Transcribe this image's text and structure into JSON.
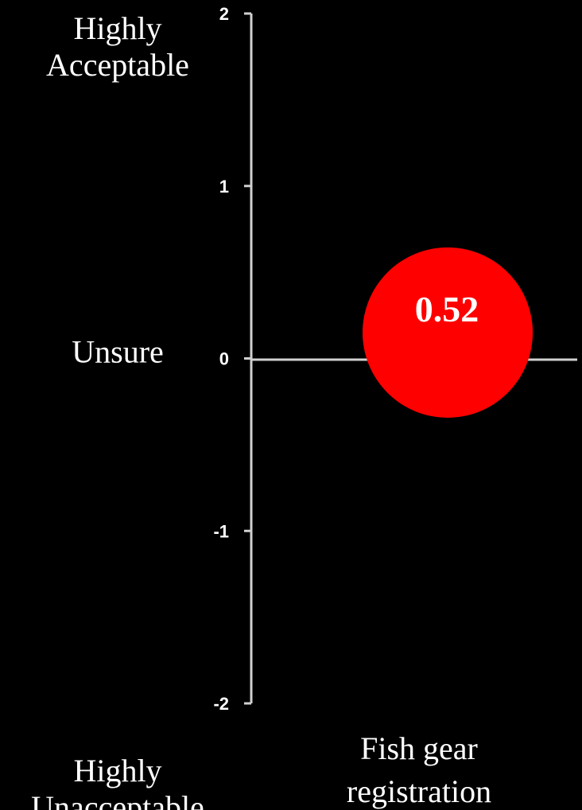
{
  "chart_data": {
    "type": "scatter",
    "ylim": [
      -2,
      2
    ],
    "yticks": [
      2,
      1,
      0,
      -1,
      -2
    ],
    "ytick_labels": [
      "2",
      "1",
      "0",
      "-1",
      "-2"
    ],
    "scale_labels": [
      {
        "value": 2,
        "lines": [
          "Highly",
          "Acceptable"
        ]
      },
      {
        "value": 0,
        "lines": [
          "Unsure"
        ]
      },
      {
        "value": -2,
        "lines": [
          "Highly",
          "Unacceptable"
        ]
      }
    ],
    "categories": [
      "Fish gear registration"
    ],
    "category_label_lines": [
      [
        "Fish gear",
        "registration"
      ]
    ],
    "points": [
      {
        "category": "Fish gear registration",
        "y": 0.15,
        "label": "0.52",
        "color": "#ff0000"
      }
    ],
    "grid": false,
    "colors": {
      "background": "#000000",
      "axis": "#d0d0d0",
      "text": "#ffffff",
      "bubble": "#ff0000"
    }
  }
}
